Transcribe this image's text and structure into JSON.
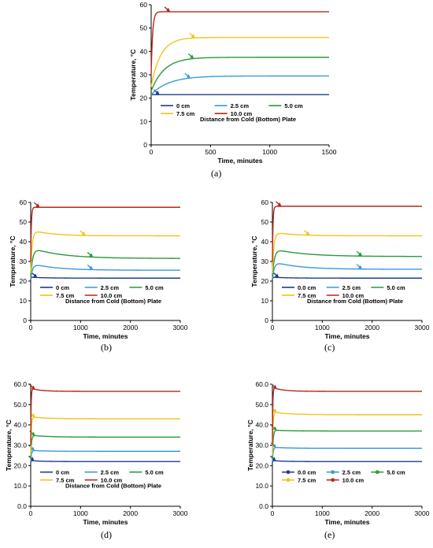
{
  "colors": {
    "s0": "#1f3b8c",
    "s25": "#3a9ad9",
    "s50": "#2a9a3a",
    "s75": "#f0c419",
    "s100": "#b5281f"
  },
  "chart_data": [
    {
      "type": "line",
      "panel": "(a)",
      "xlabel": "Time, minutes",
      "ylabel": "Temperature, °C",
      "xlim": [
        0,
        1500
      ],
      "ylim": [
        0,
        60
      ],
      "xticks": [
        "0",
        "500",
        "1000",
        "1500"
      ],
      "yticks": [
        "0",
        "10",
        "20",
        "30",
        "40",
        "50",
        "60"
      ],
      "legend_title": "Distance from Cold (Bottom) Plate",
      "legend_labels": [
        "0 cm",
        "2.5 cm",
        "5.0 cm",
        "7.5 cm",
        "10.0 cm"
      ],
      "legend_position": "inside-bottom",
      "grid": false,
      "series": [
        {
          "name": "0 cm",
          "final": 21.5,
          "peak": 21.5,
          "start": 21.5,
          "rise_tau": 10,
          "decay_tau": 200,
          "arrow_at": 70
        },
        {
          "name": "2.5 cm",
          "final": 29.5,
          "peak": 29.5,
          "start": 21.5,
          "rise_tau": 150,
          "decay_tau": 200,
          "arrow_at": 330
        },
        {
          "name": "5.0 cm",
          "final": 37.5,
          "peak": 37.5,
          "start": 23,
          "rise_tau": 110,
          "decay_tau": 200,
          "arrow_at": 360
        },
        {
          "name": "7.5 cm",
          "final": 46,
          "peak": 46,
          "start": 25,
          "rise_tau": 80,
          "decay_tau": 200,
          "arrow_at": 370
        },
        {
          "name": "10.0 cm",
          "final": 57,
          "peak": 57,
          "start": 30,
          "rise_tau": 12,
          "decay_tau": 200,
          "arrow_at": 160
        }
      ]
    },
    {
      "type": "line",
      "panel": "(b)",
      "xlabel": "Time, minutes",
      "ylabel": "Temperature, °C",
      "xlim": [
        0,
        3000
      ],
      "ylim": [
        0,
        60
      ],
      "xticks": [
        "0",
        "1000",
        "2000",
        "3000"
      ],
      "yticks": [
        "0",
        "10",
        "20",
        "30",
        "40",
        "50",
        "60"
      ],
      "legend_title": "Distance from Cold (Bottom) Plate",
      "legend_labels": [
        "0 cm",
        "2.5 cm",
        "5.0 cm",
        "7.5 cm",
        "10.0 cm"
      ],
      "legend_position": "inside-bottom",
      "grid": false,
      "series": [
        {
          "name": "0 cm",
          "final": 21.5,
          "peak": 22,
          "start": 21,
          "rise_tau": 10,
          "decay_tau": 300,
          "arrow_at": 130
        },
        {
          "name": "2.5 cm",
          "final": 25.5,
          "peak": 29,
          "start": 21,
          "rise_tau": 40,
          "decay_tau": 500,
          "arrow_at": 1250
        },
        {
          "name": "5.0 cm",
          "final": 31.5,
          "peak": 37,
          "start": 22,
          "rise_tau": 40,
          "decay_tau": 600,
          "arrow_at": 1250
        },
        {
          "name": "7.5 cm",
          "final": 43,
          "peak": 46,
          "start": 24,
          "rise_tau": 30,
          "decay_tau": 400,
          "arrow_at": 1100
        },
        {
          "name": "10.0 cm",
          "final": 57.5,
          "peak": 57.5,
          "start": 30,
          "rise_tau": 12,
          "decay_tau": 300,
          "arrow_at": 180
        }
      ]
    },
    {
      "type": "line",
      "panel": "(c)",
      "xlabel": "Time, minutes",
      "ylabel": "Temperature, °C",
      "xlim": [
        0,
        3000
      ],
      "ylim": [
        0,
        60
      ],
      "xticks": [
        "0",
        "1000",
        "2000",
        "3000"
      ],
      "yticks": [
        "0",
        "10",
        "20",
        "30",
        "40",
        "50",
        "60"
      ],
      "legend_title": "Distance from Cold (Bottom) Plate",
      "legend_labels": [
        "0.0 cm",
        "2.5 cm",
        "5.0 cm",
        "7.5 cm",
        "10.0 cm"
      ],
      "legend_position": "inside-bottom",
      "grid": false,
      "series": [
        {
          "name": "0.0 cm",
          "final": 21.5,
          "peak": 22,
          "start": 21,
          "rise_tau": 10,
          "decay_tau": 300,
          "arrow_at": 130
        },
        {
          "name": "2.5 cm",
          "final": 26,
          "peak": 30,
          "start": 21,
          "rise_tau": 40,
          "decay_tau": 500,
          "arrow_at": 1800
        },
        {
          "name": "5.0 cm",
          "final": 32.5,
          "peak": 36.5,
          "start": 22,
          "rise_tau": 40,
          "decay_tau": 600,
          "arrow_at": 1800
        },
        {
          "name": "7.5 cm",
          "final": 43,
          "peak": 45,
          "start": 24,
          "rise_tau": 30,
          "decay_tau": 400,
          "arrow_at": 750
        },
        {
          "name": "10.0 cm",
          "final": 58,
          "peak": 58,
          "start": 30,
          "rise_tau": 12,
          "decay_tau": 300,
          "arrow_at": 180
        }
      ]
    },
    {
      "type": "line",
      "panel": "(d)",
      "xlabel": "Time, minutes",
      "ylabel": "Temperature, °C",
      "xlim": [
        0,
        3000
      ],
      "ylim": [
        0,
        60
      ],
      "xticks": [
        "0",
        "1000",
        "2000",
        "3000"
      ],
      "yticks": [
        "0.0",
        "10.0",
        "20.0",
        "30.0",
        "40.0",
        "50.0",
        "60.0"
      ],
      "legend_title": "Distance from Cold (Bottom) Plate",
      "legend_labels": [
        "0 cm",
        "2.5 cm",
        "5.0 cm",
        "7.5 cm",
        "10.0 cm"
      ],
      "legend_position": "inside-bottom",
      "grid": false,
      "series": [
        {
          "name": "0 cm",
          "final": 22,
          "peak": 22.5,
          "start": 21.5,
          "rise_tau": 8,
          "decay_tau": 200,
          "arrow_at": 70
        },
        {
          "name": "2.5 cm",
          "final": 27,
          "peak": 27.5,
          "start": 22,
          "rise_tau": 15,
          "decay_tau": 300,
          "arrow_at": 80
        },
        {
          "name": "5.0 cm",
          "final": 34,
          "peak": 35,
          "start": 23,
          "rise_tau": 15,
          "decay_tau": 300,
          "arrow_at": 90
        },
        {
          "name": "7.5 cm",
          "final": 43,
          "peak": 44,
          "start": 25,
          "rise_tau": 12,
          "decay_tau": 300,
          "arrow_at": 90
        },
        {
          "name": "10.0 cm",
          "final": 56.5,
          "peak": 58,
          "start": 30,
          "rise_tau": 8,
          "decay_tau": 200,
          "arrow_at": 90
        }
      ]
    },
    {
      "type": "line",
      "panel": "(e)",
      "xlabel": "Time, minutes",
      "ylabel": "Temperature, °C",
      "xlim": [
        0,
        3000
      ],
      "ylim": [
        0,
        60
      ],
      "xticks": [
        "0",
        "1000",
        "2000",
        "3000"
      ],
      "yticks": [
        "0.0",
        "10.0",
        "20.0",
        "30.0",
        "40.0",
        "50.0",
        "60.0"
      ],
      "legend_title": "",
      "legend_labels": [
        "0.0 cm",
        "2.5 cm",
        "5.0 cm",
        "7.5 cm",
        "10.0 cm"
      ],
      "legend_position": "inside-bottom",
      "legend_markers": "circle",
      "grid": false,
      "series": [
        {
          "name": "0.0 cm",
          "final": 22,
          "peak": 22.5,
          "start": 21.5,
          "rise_tau": 8,
          "decay_tau": 200,
          "arrow_at": 70
        },
        {
          "name": "2.5 cm",
          "final": 28.5,
          "peak": 29,
          "start": 22,
          "rise_tau": 15,
          "decay_tau": 300,
          "arrow_at": 80
        },
        {
          "name": "5.0 cm",
          "final": 37,
          "peak": 37.5,
          "start": 23,
          "rise_tau": 15,
          "decay_tau": 300,
          "arrow_at": 90
        },
        {
          "name": "7.5 cm",
          "final": 45,
          "peak": 46.5,
          "start": 25,
          "rise_tau": 12,
          "decay_tau": 300,
          "arrow_at": 90
        },
        {
          "name": "10.0 cm",
          "final": 56.5,
          "peak": 58.5,
          "start": 30,
          "rise_tau": 8,
          "decay_tau": 200,
          "arrow_at": 90
        }
      ]
    }
  ],
  "captions": {
    "a": "(a)",
    "b": "(b)",
    "c": "(c)",
    "d": "(d)",
    "e": "(e)"
  }
}
